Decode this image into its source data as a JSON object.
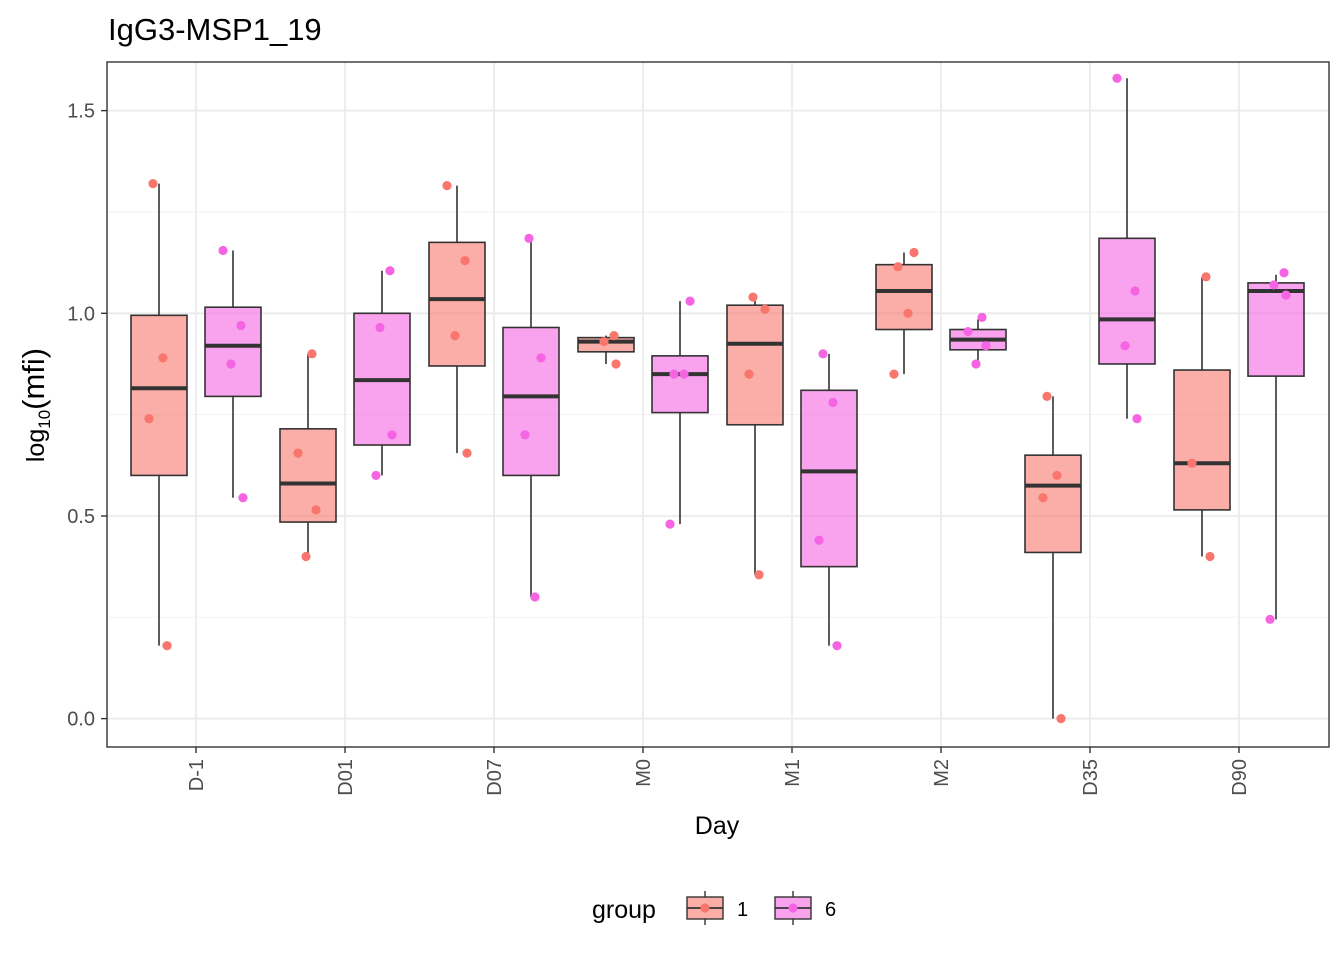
{
  "chart_data": {
    "type": "boxplot",
    "title": "IgG3-MSP1_19",
    "xlabel": "Day",
    "ylabel_base": "log",
    "ylabel_sub": "10",
    "ylabel_arg": "(mfi)",
    "ylim": [
      -0.07,
      1.62
    ],
    "yticks": [
      0.0,
      0.5,
      1.0,
      1.5
    ],
    "ytick_labels": [
      "0.0",
      "0.5",
      "1.0",
      "1.5"
    ],
    "categories": [
      "D-1",
      "D01",
      "D07",
      "M0",
      "M1",
      "M2",
      "D35",
      "D90"
    ],
    "grid": true,
    "legend": {
      "title": "group",
      "position": "bottom",
      "entries": [
        {
          "label": "1",
          "fill": "#F8766D",
          "point": "#F8766D"
        },
        {
          "label": "6",
          "fill": "#F564E3",
          "point": "#F564E3"
        }
      ]
    },
    "series": [
      {
        "name": "1",
        "fill": "#F8766D",
        "boxes": [
          {
            "category": "D-1",
            "min": 0.18,
            "q1": 0.6,
            "median": 0.815,
            "q3": 0.995,
            "max": 1.32
          },
          {
            "category": "D01",
            "min": 0.4,
            "q1": 0.485,
            "median": 0.58,
            "q3": 0.715,
            "max": 0.9
          },
          {
            "category": "D07",
            "min": 0.655,
            "q1": 0.87,
            "median": 1.035,
            "q3": 1.175,
            "max": 1.315
          },
          {
            "category": "M0",
            "min": 0.875,
            "q1": 0.905,
            "median": 0.93,
            "q3": 0.94,
            "max": 0.945
          },
          {
            "category": "M1",
            "min": 0.355,
            "q1": 0.725,
            "median": 0.925,
            "q3": 1.02,
            "max": 1.04
          },
          {
            "category": "M2",
            "min": 0.85,
            "q1": 0.96,
            "median": 1.055,
            "q3": 1.12,
            "max": 1.15
          },
          {
            "category": "D35",
            "min": 0.0,
            "q1": 0.41,
            "median": 0.575,
            "q3": 0.65,
            "max": 0.795
          },
          {
            "category": "D90",
            "min": 0.4,
            "q1": 0.515,
            "median": 0.63,
            "q3": 0.86,
            "max": 1.09
          }
        ],
        "points": [
          {
            "category": "D-1",
            "values": [
              1.32,
              0.89,
              0.74,
              0.18
            ]
          },
          {
            "category": "D01",
            "values": [
              0.9,
              0.655,
              0.515,
              0.4
            ]
          },
          {
            "category": "D07",
            "values": [
              1.315,
              1.13,
              0.945,
              0.655
            ]
          },
          {
            "category": "M0",
            "values": [
              0.945,
              0.93,
              0.875
            ]
          },
          {
            "category": "M1",
            "values": [
              1.04,
              1.01,
              0.85,
              0.355
            ]
          },
          {
            "category": "M2",
            "values": [
              1.15,
              1.115,
              1.0,
              0.85
            ]
          },
          {
            "category": "D35",
            "values": [
              0.795,
              0.6,
              0.545,
              0.0
            ]
          },
          {
            "category": "D90",
            "values": [
              1.09,
              0.63,
              0.4
            ]
          }
        ]
      },
      {
        "name": "6",
        "fill": "#F564E3",
        "boxes": [
          {
            "category": "D-1",
            "min": 0.545,
            "q1": 0.795,
            "median": 0.92,
            "q3": 1.015,
            "max": 1.155
          },
          {
            "category": "D01",
            "min": 0.6,
            "q1": 0.675,
            "median": 0.835,
            "q3": 1.0,
            "max": 1.105
          },
          {
            "category": "D07",
            "min": 0.3,
            "q1": 0.6,
            "median": 0.795,
            "q3": 0.965,
            "max": 1.185
          },
          {
            "category": "M0",
            "min": 0.48,
            "q1": 0.755,
            "median": 0.85,
            "q3": 0.895,
            "max": 1.03
          },
          {
            "category": "M1",
            "min": 0.18,
            "q1": 0.375,
            "median": 0.61,
            "q3": 0.81,
            "max": 0.9
          },
          {
            "category": "M2",
            "min": 0.875,
            "q1": 0.91,
            "median": 0.935,
            "q3": 0.96,
            "max": 0.985
          },
          {
            "category": "D35",
            "min": 0.74,
            "q1": 0.875,
            "median": 0.985,
            "q3": 1.185,
            "max": 1.58
          },
          {
            "category": "D90",
            "min": 0.245,
            "q1": 0.845,
            "median": 1.055,
            "q3": 1.075,
            "max": 1.095
          }
        ],
        "points": [
          {
            "category": "D-1",
            "values": [
              1.155,
              0.97,
              0.875,
              0.545
            ]
          },
          {
            "category": "D01",
            "values": [
              1.105,
              0.965,
              0.7,
              0.6
            ]
          },
          {
            "category": "D07",
            "values": [
              1.185,
              0.89,
              0.7,
              0.3
            ]
          },
          {
            "category": "M0",
            "values": [
              1.03,
              0.85,
              0.85,
              0.48
            ]
          },
          {
            "category": "M1",
            "values": [
              0.9,
              0.78,
              0.44,
              0.18
            ]
          },
          {
            "category": "M2",
            "values": [
              0.99,
              0.955,
              0.92,
              0.875
            ]
          },
          {
            "category": "D35",
            "values": [
              1.58,
              1.055,
              0.92,
              0.74
            ]
          },
          {
            "category": "D90",
            "values": [
              1.1,
              1.07,
              1.045,
              0.245
            ]
          }
        ]
      }
    ]
  }
}
